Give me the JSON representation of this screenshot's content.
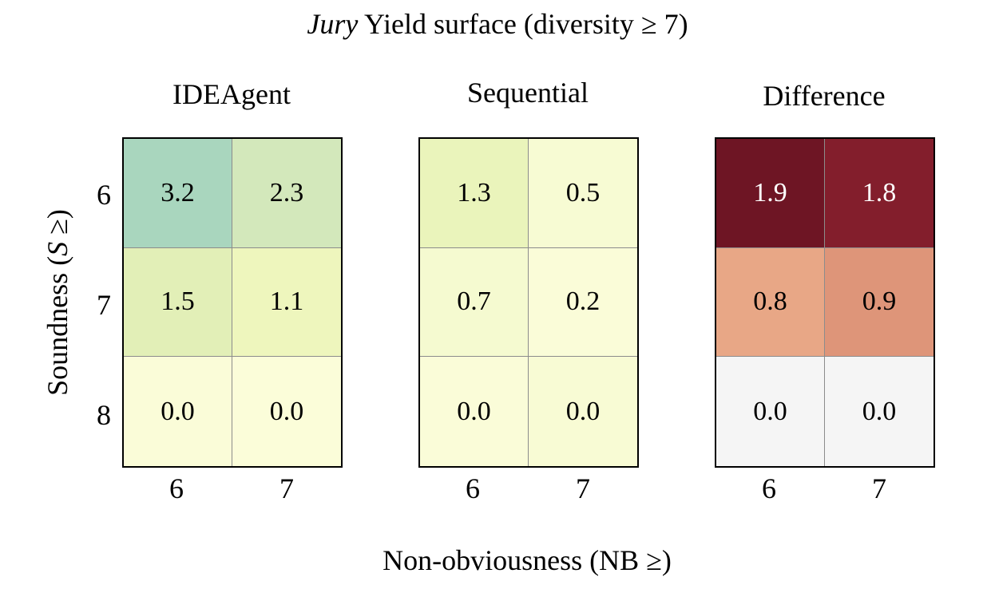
{
  "chart_data": {
    "type": "heatmap",
    "title": {
      "italic": "Jury",
      "rest": " Yield surface (diversity ≥ 7)"
    },
    "xlabel": "Non-obviousness (NB ≥)",
    "ylabel": {
      "prefix": "Soundness (",
      "italic": "S",
      "suffix": " ≥)"
    },
    "x_ticks": [
      "6",
      "7"
    ],
    "y_ticks": [
      "6",
      "7",
      "8"
    ],
    "panels": [
      {
        "name": "IDEAgent",
        "values": [
          [
            "3.2",
            "2.3"
          ],
          [
            "1.5",
            "1.1"
          ],
          [
            "0.0",
            "0.0"
          ]
        ],
        "colors": [
          [
            "#a9d6be",
            "#d3e8bb"
          ],
          [
            "#e2efb7",
            "#eef6bd"
          ],
          [
            "#fafcd8",
            "#fbfdd9"
          ]
        ],
        "text_colors": [
          [
            "#000000",
            "#000000"
          ],
          [
            "#000000",
            "#000000"
          ],
          [
            "#000000",
            "#000000"
          ]
        ]
      },
      {
        "name": "Sequential",
        "values": [
          [
            "1.3",
            "0.5"
          ],
          [
            "0.7",
            "0.2"
          ],
          [
            "0.0",
            "0.0"
          ]
        ],
        "colors": [
          [
            "#eaf4bb",
            "#f7fbd3"
          ],
          [
            "#f5fad0",
            "#fafcd8"
          ],
          [
            "#fafcd8",
            "#f8fbd4"
          ]
        ],
        "text_colors": [
          [
            "#000000",
            "#000000"
          ],
          [
            "#000000",
            "#000000"
          ],
          [
            "#000000",
            "#000000"
          ]
        ]
      },
      {
        "name": "Difference",
        "values": [
          [
            "1.9",
            "1.8"
          ],
          [
            "0.8",
            "0.9"
          ],
          [
            "0.0",
            "0.0"
          ]
        ],
        "colors": [
          [
            "#6e1524",
            "#831e2c"
          ],
          [
            "#e8a786",
            "#de9579"
          ],
          [
            "#f5f5f5",
            "#f5f5f5"
          ]
        ],
        "text_colors": [
          [
            "#ffffff",
            "#ffffff"
          ],
          [
            "#000000",
            "#000000"
          ],
          [
            "#000000",
            "#000000"
          ]
        ]
      }
    ]
  }
}
